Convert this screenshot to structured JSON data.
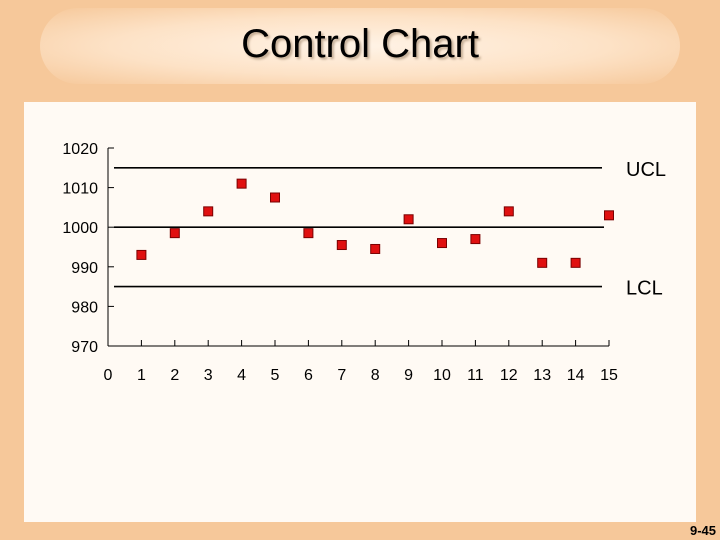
{
  "title": "Control Chart",
  "page_number": "9-45",
  "chart_data": {
    "type": "scatter",
    "title": "Control Chart",
    "xlabel": "",
    "ylabel": "",
    "x": [
      1,
      2,
      3,
      4,
      5,
      6,
      7,
      8,
      9,
      10,
      11,
      12,
      13,
      14,
      15
    ],
    "values": [
      993,
      998.5,
      1004,
      1011,
      1007.5,
      998.5,
      995.5,
      994.5,
      1002,
      996,
      997,
      1004,
      991,
      991,
      1003
    ],
    "xlim": [
      0,
      15
    ],
    "ylim": [
      970,
      1020
    ],
    "x_ticks": [
      "0",
      "1",
      "2",
      "3",
      "4",
      "5",
      "6",
      "7",
      "8",
      "9",
      "10",
      "11",
      "12",
      "13",
      "14",
      "15"
    ],
    "y_ticks": [
      "970",
      "980",
      "990",
      "1000",
      "1010",
      "1020"
    ],
    "control_lines": [
      {
        "label": "UCL",
        "value": 1015
      },
      {
        "label": "",
        "value": 1000
      },
      {
        "label": "LCL",
        "value": 985
      }
    ],
    "marker_color": "#e01010",
    "marker_edge_color": "#7a0000",
    "grid": false
  }
}
